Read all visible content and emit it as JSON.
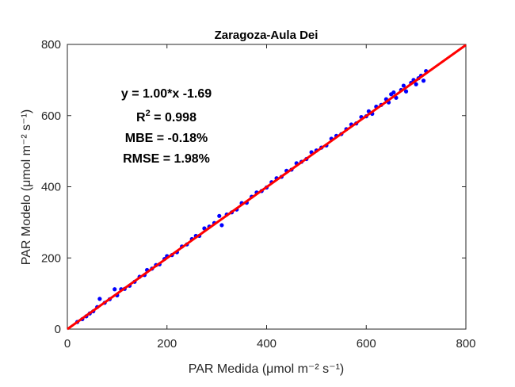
{
  "chart_data": {
    "type": "scatter",
    "title": "Zaragoza-Aula Dei",
    "xlabel": "PAR Medida (μmol m⁻² s⁻¹)",
    "ylabel": "PAR Modelo (μmol m⁻² s⁻¹)",
    "xlim": [
      0,
      800
    ],
    "ylim": [
      0,
      800
    ],
    "xticks": [
      0,
      200,
      400,
      600,
      800
    ],
    "yticks": [
      0,
      200,
      400,
      600,
      800
    ],
    "grid": false,
    "annotations": {
      "equation": "y = 1.00*x -1.69",
      "r2_label": "R",
      "r2_exp": "2",
      "r2_value": " = 0.998",
      "mbe": "MBE = -0.18%",
      "rmse": "RMSE = 1.98%"
    },
    "fit_line": {
      "slope": 1.0,
      "intercept": -1.69,
      "x_range": [
        0,
        800
      ],
      "color": "#ff0000"
    },
    "point_color": "#0000ff",
    "points": [
      [
        20,
        20
      ],
      [
        30,
        28
      ],
      [
        38,
        36
      ],
      [
        45,
        44
      ],
      [
        52,
        50
      ],
      [
        60,
        62
      ],
      [
        65,
        85
      ],
      [
        75,
        74
      ],
      [
        85,
        84
      ],
      [
        95,
        112
      ],
      [
        108,
        112
      ],
      [
        100,
        95
      ],
      [
        115,
        113
      ],
      [
        125,
        122
      ],
      [
        135,
        133
      ],
      [
        145,
        147
      ],
      [
        155,
        152
      ],
      [
        160,
        166
      ],
      [
        170,
        170
      ],
      [
        178,
        180
      ],
      [
        185,
        182
      ],
      [
        195,
        197
      ],
      [
        200,
        205
      ],
      [
        210,
        208
      ],
      [
        220,
        216
      ],
      [
        230,
        232
      ],
      [
        240,
        238
      ],
      [
        250,
        253
      ],
      [
        258,
        262
      ],
      [
        265,
        262
      ],
      [
        275,
        283
      ],
      [
        285,
        288
      ],
      [
        295,
        298
      ],
      [
        305,
        318
      ],
      [
        310,
        292
      ],
      [
        320,
        322
      ],
      [
        330,
        328
      ],
      [
        340,
        336
      ],
      [
        350,
        354
      ],
      [
        360,
        355
      ],
      [
        370,
        372
      ],
      [
        380,
        384
      ],
      [
        390,
        388
      ],
      [
        400,
        398
      ],
      [
        410,
        413
      ],
      [
        420,
        424
      ],
      [
        430,
        428
      ],
      [
        440,
        445
      ],
      [
        450,
        448
      ],
      [
        460,
        466
      ],
      [
        470,
        470
      ],
      [
        480,
        478
      ],
      [
        490,
        497
      ],
      [
        500,
        502
      ],
      [
        510,
        510
      ],
      [
        520,
        516
      ],
      [
        530,
        535
      ],
      [
        540,
        543
      ],
      [
        550,
        548
      ],
      [
        560,
        562
      ],
      [
        570,
        575
      ],
      [
        580,
        578
      ],
      [
        590,
        596
      ],
      [
        600,
        598
      ],
      [
        605,
        612
      ],
      [
        612,
        605
      ],
      [
        620,
        625
      ],
      [
        630,
        630
      ],
      [
        640,
        646
      ],
      [
        645,
        637
      ],
      [
        650,
        660
      ],
      [
        655,
        665
      ],
      [
        660,
        650
      ],
      [
        670,
        672
      ],
      [
        675,
        684
      ],
      [
        680,
        668
      ],
      [
        690,
        692
      ],
      [
        695,
        700
      ],
      [
        700,
        688
      ],
      [
        705,
        705
      ],
      [
        710,
        712
      ],
      [
        715,
        698
      ],
      [
        720,
        725
      ]
    ]
  }
}
